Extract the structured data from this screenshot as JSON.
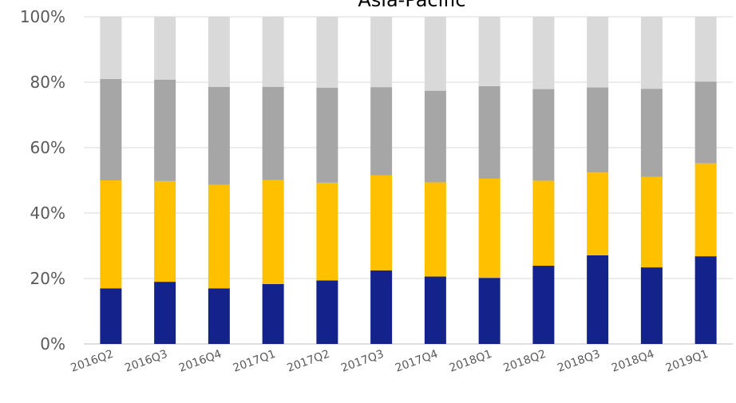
{
  "chart_data": {
    "type": "bar",
    "stacked": true,
    "percent": true,
    "title": "Asia-Pacific",
    "categories": [
      "2016Q2",
      "2016Q3",
      "2016Q4",
      "2017Q1",
      "2017Q2",
      "2017Q3",
      "2017Q4",
      "2018Q1",
      "2018Q2",
      "2018Q3",
      "2018Q4",
      "2019Q1"
    ],
    "ylim": [
      0,
      100
    ],
    "yticks": [
      "0%",
      "20%",
      "40%",
      "60%",
      "80%",
      "100%"
    ],
    "grid": true,
    "legend": "none",
    "series": [
      {
        "color": "#14228c",
        "values": [
          17,
          19,
          17,
          18.3,
          19.4,
          22.5,
          20.6,
          20.2,
          23.9,
          27.1,
          23.4,
          26.8
        ]
      },
      {
        "color": "#ffc000",
        "values": [
          33,
          30.8,
          31.6,
          31.8,
          29.9,
          29,
          28.8,
          30.3,
          26,
          25.3,
          27.7,
          28.4
        ]
      },
      {
        "color": "#a6a6a6",
        "values": [
          31,
          31,
          30,
          28.5,
          29,
          27,
          28,
          28.3,
          28,
          26,
          26.9,
          25
        ]
      },
      {
        "color": "#d9d9d9",
        "values": [
          19,
          19.2,
          21.4,
          21.4,
          21.7,
          21.5,
          22.6,
          21.2,
          22.1,
          21.6,
          22,
          19.8
        ]
      }
    ]
  }
}
